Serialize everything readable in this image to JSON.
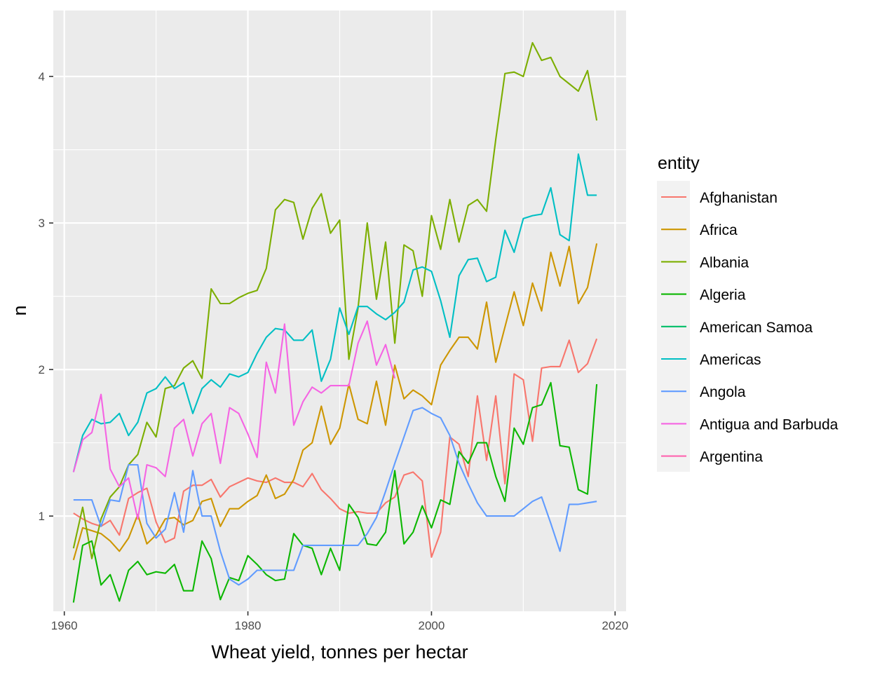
{
  "chart_data": {
    "type": "line",
    "xlabel": "Wheat yield, tonnes per hectar",
    "ylabel": "n",
    "xlim": [
      1958.8,
      2021.2
    ],
    "ylim": [
      0.35,
      4.45
    ],
    "x_ticks": [
      1960,
      1980,
      2000,
      2020
    ],
    "y_ticks": [
      1,
      2,
      3,
      4
    ],
    "grid": true,
    "legend": {
      "title": "entity",
      "position": "right"
    },
    "series": [
      {
        "name": "Afghanistan",
        "color": "#F8766D",
        "x": [
          1961,
          1962,
          1963,
          1964,
          1965,
          1966,
          1967,
          1968,
          1969,
          1970,
          1971,
          1972,
          1973,
          1974,
          1975,
          1976,
          1977,
          1978,
          1979,
          1980,
          1981,
          1982,
          1983,
          1984,
          1985,
          1986,
          1987,
          1988,
          1989,
          1990,
          1991,
          1992,
          1993,
          1994,
          1995,
          1996,
          1997,
          1998,
          1999,
          2000,
          2001,
          2002,
          2003,
          2004,
          2005,
          2006,
          2007,
          2008,
          2009,
          2010,
          2011,
          2012,
          2013,
          2014,
          2015,
          2016,
          2017,
          2018
        ],
        "y": [
          1.02,
          0.98,
          0.95,
          0.93,
          0.97,
          0.87,
          1.12,
          1.16,
          1.19,
          0.96,
          0.82,
          0.85,
          1.17,
          1.21,
          1.21,
          1.25,
          1.13,
          1.2,
          1.23,
          1.26,
          1.24,
          1.23,
          1.26,
          1.23,
          1.23,
          1.2,
          1.29,
          1.18,
          1.12,
          1.05,
          1.02,
          1.03,
          1.02,
          1.02,
          1.09,
          1.13,
          1.28,
          1.3,
          1.24,
          0.72,
          0.89,
          1.54,
          1.49,
          1.27,
          1.82,
          1.38,
          1.82,
          1.22,
          1.97,
          1.93,
          1.51,
          2.01,
          2.02,
          2.02,
          2.2,
          1.98,
          2.04,
          2.21
        ]
      },
      {
        "name": "Africa",
        "color": "#CD9600",
        "x": [
          1961,
          1962,
          1963,
          1964,
          1965,
          1966,
          1967,
          1968,
          1969,
          1970,
          1971,
          1972,
          1973,
          1974,
          1975,
          1976,
          1977,
          1978,
          1979,
          1980,
          1981,
          1982,
          1983,
          1984,
          1985,
          1986,
          1987,
          1988,
          1989,
          1990,
          1991,
          1992,
          1993,
          1994,
          1995,
          1996,
          1997,
          1998,
          1999,
          2000,
          2001,
          2002,
          2003,
          2004,
          2005,
          2006,
          2007,
          2008,
          2009,
          2010,
          2011,
          2012,
          2013,
          2014,
          2015,
          2016,
          2017,
          2018
        ],
        "y": [
          0.7,
          0.92,
          0.9,
          0.88,
          0.83,
          0.76,
          0.85,
          1.01,
          0.81,
          0.87,
          0.98,
          0.99,
          0.94,
          0.97,
          1.1,
          1.12,
          0.93,
          1.05,
          1.05,
          1.1,
          1.14,
          1.28,
          1.12,
          1.15,
          1.25,
          1.45,
          1.5,
          1.75,
          1.49,
          1.6,
          1.9,
          1.66,
          1.63,
          1.92,
          1.62,
          2.03,
          1.8,
          1.86,
          1.82,
          1.76,
          2.03,
          2.13,
          2.22,
          2.22,
          2.14,
          2.46,
          2.05,
          2.29,
          2.53,
          2.3,
          2.59,
          2.4,
          2.8,
          2.57,
          2.84,
          2.45,
          2.56,
          2.86
        ]
      },
      {
        "name": "Albania",
        "color": "#7CAE00",
        "x": [
          1961,
          1962,
          1963,
          1964,
          1965,
          1966,
          1967,
          1968,
          1969,
          1970,
          1971,
          1972,
          1973,
          1974,
          1975,
          1976,
          1977,
          1978,
          1979,
          1980,
          1981,
          1982,
          1983,
          1984,
          1985,
          1986,
          1987,
          1988,
          1989,
          1990,
          1991,
          1992,
          1993,
          1994,
          1995,
          1996,
          1997,
          1998,
          1999,
          2000,
          2001,
          2002,
          2003,
          2004,
          2005,
          2006,
          2007,
          2008,
          2009,
          2010,
          2011,
          2012,
          2013,
          2014,
          2015,
          2016,
          2017,
          2018
        ],
        "y": [
          0.78,
          1.06,
          0.71,
          0.98,
          1.13,
          1.2,
          1.35,
          1.42,
          1.64,
          1.54,
          1.87,
          1.89,
          2.01,
          2.06,
          1.94,
          2.55,
          2.45,
          2.45,
          2.49,
          2.52,
          2.54,
          2.69,
          3.09,
          3.16,
          3.14,
          2.89,
          3.1,
          3.2,
          2.93,
          3.02,
          2.07,
          2.42,
          3,
          2.48,
          2.87,
          2.18,
          2.85,
          2.81,
          2.5,
          3.05,
          2.82,
          3.16,
          2.87,
          3.12,
          3.16,
          3.08,
          3.57,
          4.02,
          4.03,
          4,
          4.23,
          4.11,
          4.13,
          4,
          3.95,
          3.9,
          4.04,
          3.7
        ]
      },
      {
        "name": "Algeria",
        "color": "#0CB702",
        "x": [
          1961,
          1962,
          1963,
          1964,
          1965,
          1966,
          1967,
          1968,
          1969,
          1970,
          1971,
          1972,
          1973,
          1974,
          1975,
          1976,
          1977,
          1978,
          1979,
          1980,
          1981,
          1982,
          1983,
          1984,
          1985,
          1986,
          1987,
          1988,
          1989,
          1990,
          1991,
          1992,
          1993,
          1994,
          1995,
          1996,
          1997,
          1998,
          1999,
          2000,
          2001,
          2002,
          2003,
          2004,
          2005,
          2006,
          2007,
          2008,
          2009,
          2010,
          2011,
          2012,
          2013,
          2014,
          2015,
          2016,
          2017,
          2018
        ],
        "y": [
          0.41,
          0.8,
          0.83,
          0.53,
          0.6,
          0.42,
          0.63,
          0.69,
          0.6,
          0.62,
          0.61,
          0.67,
          0.49,
          0.49,
          0.83,
          0.71,
          0.43,
          0.58,
          0.56,
          0.73,
          0.67,
          0.6,
          0.56,
          0.57,
          0.88,
          0.8,
          0.78,
          0.6,
          0.78,
          0.63,
          1.08,
          0.99,
          0.81,
          0.8,
          0.89,
          1.31,
          0.81,
          0.89,
          1.07,
          0.92,
          1.11,
          1.08,
          1.44,
          1.36,
          1.5,
          1.5,
          1.27,
          1.1,
          1.6,
          1.49,
          1.74,
          1.76,
          1.91,
          1.48,
          1.47,
          1.18,
          1.15,
          1.9
        ]
      },
      {
        "name": "American Samoa",
        "color": "#00BE67",
        "x": [],
        "y": []
      },
      {
        "name": "Americas",
        "color": "#00BFC4",
        "x": [
          1961,
          1962,
          1963,
          1964,
          1965,
          1966,
          1967,
          1968,
          1969,
          1970,
          1971,
          1972,
          1973,
          1974,
          1975,
          1976,
          1977,
          1978,
          1979,
          1980,
          1981,
          1982,
          1983,
          1984,
          1985,
          1986,
          1987,
          1988,
          1989,
          1990,
          1991,
          1992,
          1993,
          1994,
          1995,
          1996,
          1997,
          1998,
          1999,
          2000,
          2001,
          2002,
          2003,
          2004,
          2005,
          2006,
          2007,
          2008,
          2009,
          2010,
          2011,
          2012,
          2013,
          2014,
          2015,
          2016,
          2017,
          2018
        ],
        "y": [
          1.3,
          1.55,
          1.66,
          1.63,
          1.64,
          1.7,
          1.55,
          1.64,
          1.84,
          1.87,
          1.95,
          1.87,
          1.91,
          1.7,
          1.87,
          1.93,
          1.88,
          1.97,
          1.95,
          1.98,
          2.11,
          2.22,
          2.28,
          2.27,
          2.2,
          2.2,
          2.27,
          1.92,
          2.07,
          2.42,
          2.24,
          2.43,
          2.43,
          2.38,
          2.34,
          2.39,
          2.46,
          2.68,
          2.7,
          2.67,
          2.47,
          2.22,
          2.64,
          2.75,
          2.76,
          2.6,
          2.63,
          2.95,
          2.8,
          3.03,
          3.05,
          3.06,
          3.24,
          2.92,
          2.88,
          3.47,
          3.19,
          3.19
        ]
      },
      {
        "name": "Angola",
        "color": "#619CFF",
        "x": [
          1961,
          1962,
          1963,
          1964,
          1965,
          1966,
          1967,
          1968,
          1969,
          1970,
          1971,
          1972,
          1973,
          1974,
          1975,
          1976,
          1977,
          1978,
          1979,
          1980,
          1981,
          1982,
          1983,
          1984,
          1985,
          1986,
          1987,
          1988,
          1989,
          1990,
          1991,
          1992,
          1993,
          1994,
          1995,
          1996,
          1997,
          1998,
          1999,
          2000,
          2001,
          2002,
          2003,
          2004,
          2005,
          2006,
          2007,
          2008,
          2009,
          2010,
          2011,
          2012,
          2013,
          2014,
          2015,
          2016,
          2017,
          2018
        ],
        "y": [
          1.11,
          1.11,
          1.11,
          0.93,
          1.11,
          1.1,
          1.35,
          1.35,
          0.95,
          0.85,
          0.91,
          1.16,
          0.89,
          1.31,
          1,
          1,
          0.76,
          0.57,
          0.53,
          0.57,
          0.63,
          0.63,
          0.63,
          0.63,
          0.63,
          0.8,
          0.8,
          0.8,
          0.8,
          0.8,
          0.8,
          0.8,
          0.88,
          0.99,
          1.17,
          1.36,
          1.54,
          1.72,
          1.74,
          1.7,
          1.67,
          1.55,
          1.36,
          1.22,
          1.09,
          1,
          1,
          1,
          1,
          1.05,
          1.1,
          1.13,
          0.95,
          0.76,
          1.08,
          1.08,
          1.09,
          1.1
        ]
      },
      {
        "name": "Antigua and Barbuda",
        "color": "#F564E3",
        "x": [
          1961,
          1962,
          1963,
          1964,
          1965,
          1966,
          1967,
          1968,
          1969,
          1970,
          1971,
          1972,
          1973,
          1974,
          1975,
          1976,
          1977,
          1978,
          1979,
          1980,
          1981,
          1982,
          1983,
          1984,
          1985,
          1986,
          1987,
          1988,
          1989,
          1990,
          1991,
          1992,
          1993,
          1994,
          1995,
          1996
        ],
        "y": [
          1.3,
          1.52,
          1.57,
          1.83,
          1.32,
          1.2,
          1.26,
          0.98,
          1.35,
          1.33,
          1.27,
          1.6,
          1.66,
          1.41,
          1.63,
          1.7,
          1.36,
          1.74,
          1.7,
          1.56,
          1.4,
          2.05,
          1.84,
          2.31,
          1.62,
          1.78,
          1.88,
          1.84,
          1.89,
          1.89,
          1.89,
          2.18,
          2.33,
          2.03,
          2.17,
          1.94
        ]
      },
      {
        "name": "Argentina",
        "color": "#FF64B0",
        "x": [],
        "y": []
      }
    ]
  }
}
